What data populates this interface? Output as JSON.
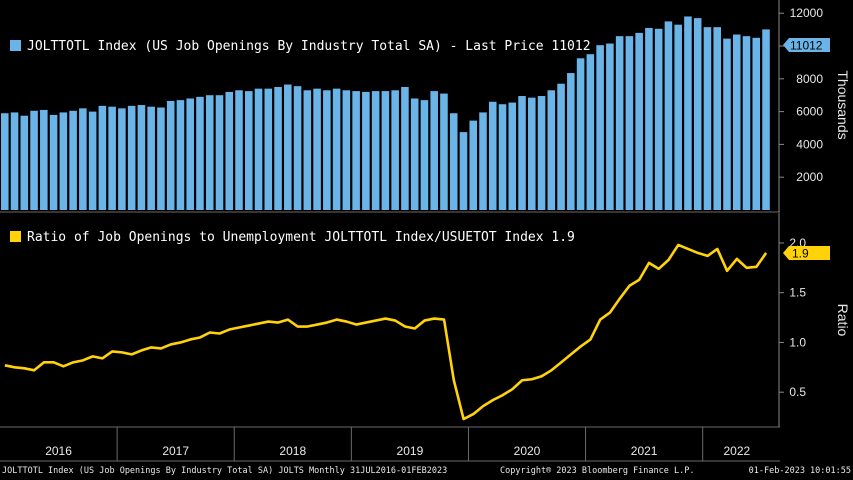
{
  "chart_data": [
    {
      "type": "bar",
      "legend": "JOLTTOTL Index (US Job Openings By Industry Total SA) - Last Price 11012",
      "last_value_tag": "11012",
      "ylabel": "Thousands",
      "ylim": [
        0,
        12500
      ],
      "yticks": [
        2000,
        4000,
        6000,
        8000,
        10000,
        12000
      ],
      "colors": {
        "bar": "#6ab4e8",
        "tag_bg": "#6ab4e8",
        "tag_text": "#000000"
      },
      "x_start": "2016-01",
      "values": [
        5900,
        5950,
        5750,
        6050,
        6100,
        5800,
        5950,
        6050,
        6200,
        6000,
        6350,
        6300,
        6200,
        6350,
        6400,
        6300,
        6250,
        6650,
        6700,
        6800,
        6900,
        7000,
        7000,
        7200,
        7300,
        7250,
        7400,
        7400,
        7500,
        7650,
        7550,
        7300,
        7400,
        7300,
        7400,
        7300,
        7250,
        7200,
        7250,
        7250,
        7300,
        7500,
        6800,
        6700,
        7250,
        7100,
        5900,
        4750,
        5450,
        5950,
        6600,
        6450,
        6550,
        6950,
        6850,
        6950,
        7300,
        7700,
        8350,
        9250,
        9500,
        10050,
        10150,
        10600,
        10600,
        10800,
        11100,
        11050,
        11500,
        11300,
        11800,
        11700,
        11150,
        11150,
        10450,
        10700,
        10600,
        10500,
        11012
      ]
    },
    {
      "type": "line",
      "legend": "Ratio of Job Openings to Unemployment JOLTTOTL Index/USUETOT Index 1.9",
      "last_value_tag": "1.9",
      "ylabel": "Ratio",
      "ylim": [
        0.15,
        2.05
      ],
      "yticks": [
        0.5,
        1.0,
        1.5,
        2.0
      ],
      "ytick_labels": [
        "0.5",
        "1.0",
        "1.5",
        "2.0"
      ],
      "colors": {
        "line": "#ffd20a",
        "tag_bg": "#ffd20a",
        "tag_text": "#000000"
      },
      "values": [
        0.77,
        0.75,
        0.74,
        0.72,
        0.8,
        0.8,
        0.76,
        0.8,
        0.82,
        0.86,
        0.84,
        0.91,
        0.9,
        0.88,
        0.92,
        0.95,
        0.94,
        0.98,
        1.0,
        1.03,
        1.05,
        1.1,
        1.09,
        1.13,
        1.15,
        1.17,
        1.19,
        1.21,
        1.2,
        1.23,
        1.16,
        1.16,
        1.18,
        1.2,
        1.23,
        1.21,
        1.18,
        1.2,
        1.22,
        1.24,
        1.22,
        1.16,
        1.14,
        1.22,
        1.24,
        1.23,
        0.62,
        0.23,
        0.28,
        0.36,
        0.42,
        0.47,
        0.53,
        0.62,
        0.63,
        0.66,
        0.72,
        0.8,
        0.88,
        0.96,
        1.03,
        1.23,
        1.3,
        1.44,
        1.57,
        1.63,
        1.8,
        1.74,
        1.83,
        1.98,
        1.94,
        1.9,
        1.87,
        1.94,
        1.72,
        1.84,
        1.75,
        1.76,
        1.9
      ]
    }
  ],
  "x_axis": {
    "years": [
      "2016",
      "2017",
      "2018",
      "2019",
      "2020",
      "2021",
      "2022"
    ]
  },
  "footer": {
    "left": "JOLTTOTL Index (US Job Openings By Industry Total SA) JOLTS  Monthly 31JUL2016-01FEB2023",
    "center": "Copyright® 2023 Bloomberg Finance L.P.",
    "right": "01-Feb-2023 10:01:55"
  }
}
